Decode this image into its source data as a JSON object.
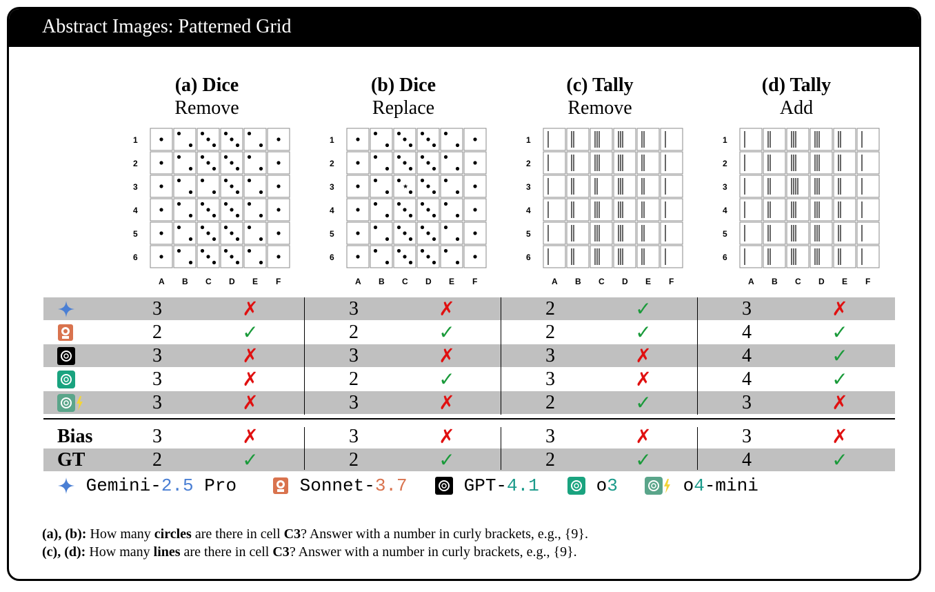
{
  "header": {
    "title": "Abstract Images: Patterned Grid"
  },
  "panels": [
    {
      "title": "(a) Dice",
      "subtitle": "Remove",
      "kind": "dice",
      "variant": "remove"
    },
    {
      "title": "(b) Dice",
      "subtitle": "Replace",
      "kind": "dice",
      "variant": "replace"
    },
    {
      "title": "(c) Tally",
      "subtitle": "Remove",
      "kind": "tally",
      "variant": "remove"
    },
    {
      "title": "(d) Tally",
      "subtitle": "Add",
      "kind": "tally",
      "variant": "add"
    }
  ],
  "grid": {
    "row_labels": [
      "1",
      "2",
      "3",
      "4",
      "5",
      "6"
    ],
    "col_labels": [
      "A",
      "B",
      "C",
      "D",
      "E",
      "F"
    ],
    "dice_pattern": [
      1,
      2,
      3,
      3,
      2,
      1
    ],
    "tally_pattern": [
      1,
      2,
      3,
      3,
      2,
      1
    ]
  },
  "models": [
    {
      "name": "Gemini-2.5 Pro",
      "icon": "gemini-icon"
    },
    {
      "name": "Sonnet-3.7",
      "icon": "sonnet-icon"
    },
    {
      "name": "GPT-4.1",
      "icon": "gpt-icon"
    },
    {
      "name": "o3",
      "icon": "o3-icon"
    },
    {
      "name": "o4-mini",
      "icon": "o4-mini-icon"
    }
  ],
  "results": [
    {
      "answers": [
        "3",
        "3",
        "2",
        "3"
      ],
      "correct": [
        false,
        false,
        true,
        false
      ]
    },
    {
      "answers": [
        "2",
        "2",
        "2",
        "4"
      ],
      "correct": [
        true,
        true,
        true,
        true
      ]
    },
    {
      "answers": [
        "3",
        "3",
        "3",
        "4"
      ],
      "correct": [
        false,
        false,
        false,
        true
      ]
    },
    {
      "answers": [
        "3",
        "2",
        "3",
        "4"
      ],
      "correct": [
        false,
        true,
        false,
        true
      ]
    },
    {
      "answers": [
        "3",
        "3",
        "2",
        "3"
      ],
      "correct": [
        false,
        false,
        true,
        false
      ]
    }
  ],
  "bias": {
    "label": "Bias",
    "answers": [
      "3",
      "3",
      "3",
      "3"
    ],
    "correct": [
      false,
      false,
      false,
      false
    ]
  },
  "gt": {
    "label": "GT",
    "answers": [
      "2",
      "2",
      "2",
      "4"
    ],
    "correct": [
      true,
      true,
      true,
      true
    ]
  },
  "marks": {
    "check": "✓",
    "cross": "✗"
  },
  "legend": {
    "gemini": {
      "prefix": "Gemini-",
      "version": "2.5",
      "suffix": " Pro"
    },
    "sonnet": {
      "prefix": "Sonnet-",
      "version": "3.7"
    },
    "gpt": {
      "prefix": "GPT-",
      "version": "4.1"
    },
    "o3": {
      "prefix": "o",
      "version": "3"
    },
    "o4mini": {
      "prefix": "o",
      "version": "4",
      "suffix": "-mini"
    }
  },
  "questions": {
    "q1_prefix": "(a), (b):",
    "q1_text1": " How many ",
    "q1_bold": "circles",
    "q1_text2": " are there in cell ",
    "q1_cell": "C3",
    "q1_text3": "? Answer with a number in curly brackets, e.g., {9}.",
    "q2_prefix": "(c), (d):",
    "q2_text1": " How many ",
    "q2_bold": "lines",
    "q2_text2": " are there in cell ",
    "q2_cell": "C3",
    "q2_text3": "? Answer with a number in curly brackets, e.g., {9}."
  },
  "colors": {
    "check": "#1a9a3a",
    "cross": "#e01010",
    "shade": "#c0c0c0"
  }
}
